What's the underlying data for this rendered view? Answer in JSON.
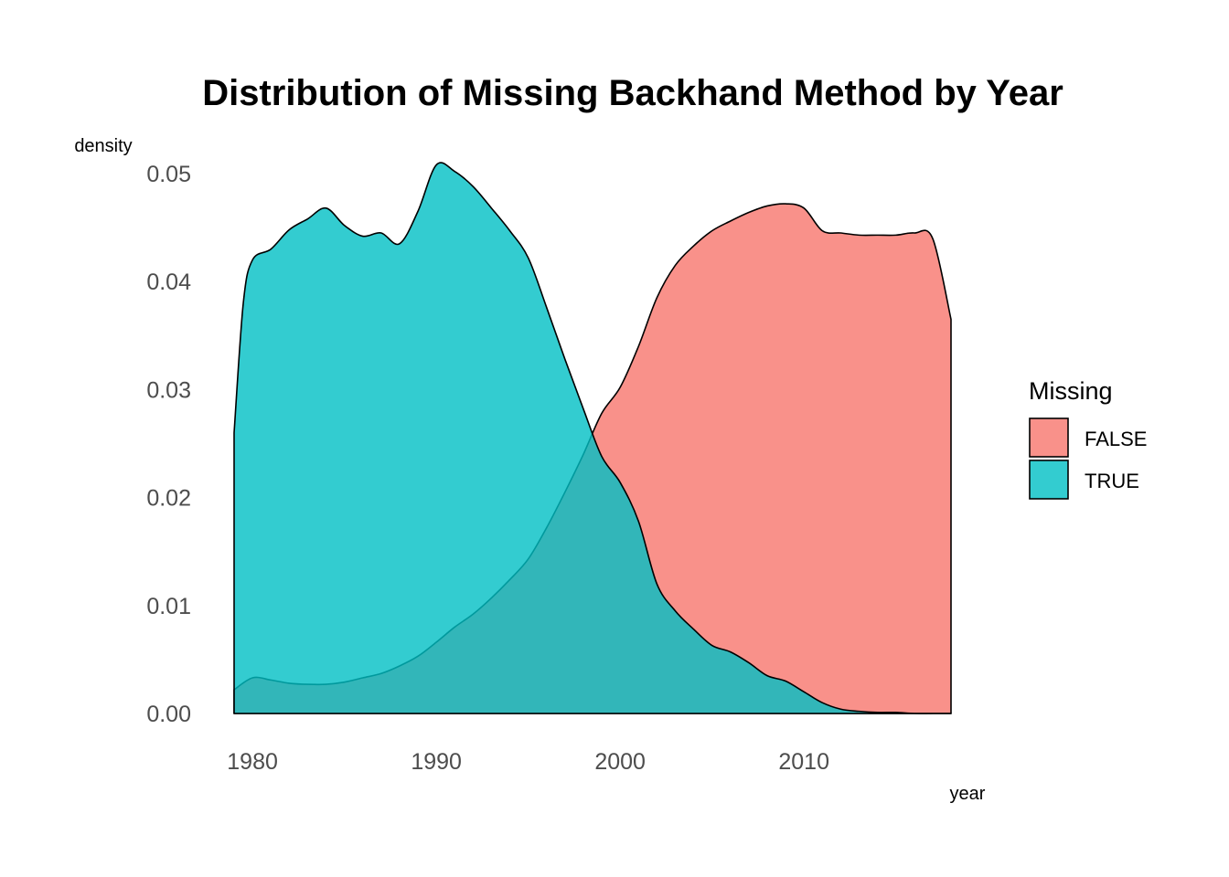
{
  "chart_data": {
    "type": "area",
    "title": "Distribution of Missing Backhand Method by Year",
    "xlabel": "year",
    "ylabel": "density",
    "xlim": [
      1979,
      2018
    ],
    "ylim": [
      0,
      0.05
    ],
    "x_ticks": [
      1980,
      1990,
      2000,
      2010
    ],
    "x_tick_labels": [
      "1980",
      "1990",
      "2000",
      "2010"
    ],
    "y_ticks": [
      0,
      0.01,
      0.02,
      0.03,
      0.04,
      0.05
    ],
    "y_tick_labels": [
      "0.00",
      "0.01",
      "0.02",
      "0.03",
      "0.04",
      "0.05"
    ],
    "grid": false,
    "legend": {
      "title": "Missing",
      "position": "right"
    },
    "series": [
      {
        "name": "FALSE",
        "color": "#F8766D",
        "x": [
          1979,
          1980,
          1981,
          1982,
          1983,
          1984,
          1985,
          1986,
          1987,
          1988,
          1989,
          1990,
          1991,
          1992,
          1993,
          1994,
          1995,
          1996,
          1997,
          1998,
          1999,
          2000,
          2001,
          2002,
          2003,
          2004,
          2005,
          2006,
          2007,
          2008,
          2009,
          2010,
          2011,
          2012,
          2013,
          2014,
          2015,
          2016,
          2017,
          2018
        ],
        "values": [
          0.0022,
          0.0033,
          0.0031,
          0.0028,
          0.0027,
          0.0027,
          0.0029,
          0.0033,
          0.0037,
          0.0044,
          0.0053,
          0.0066,
          0.008,
          0.0092,
          0.0107,
          0.0124,
          0.0143,
          0.0172,
          0.0205,
          0.024,
          0.0278,
          0.0302,
          0.034,
          0.0385,
          0.0415,
          0.0433,
          0.0447,
          0.0456,
          0.0464,
          0.047,
          0.0472,
          0.0468,
          0.0447,
          0.0445,
          0.0443,
          0.0443,
          0.0443,
          0.0445,
          0.044,
          0.0365
        ]
      },
      {
        "name": "TRUE",
        "color": "#00BFC4",
        "x": [
          1979,
          1979.5,
          1980,
          1981,
          1982,
          1983,
          1984,
          1985,
          1986,
          1987,
          1988,
          1989,
          1990,
          1991,
          1992,
          1993,
          1994,
          1995,
          1996,
          1997,
          1998,
          1999,
          2000,
          2001,
          2002,
          2003,
          2004,
          2005,
          2006,
          2007,
          2008,
          2009,
          2010,
          2011,
          2012,
          2013,
          2014,
          2015,
          2016,
          2017,
          2018
        ],
        "values": [
          0.026,
          0.038,
          0.042,
          0.043,
          0.0448,
          0.0458,
          0.0468,
          0.0452,
          0.0442,
          0.0445,
          0.0435,
          0.0465,
          0.0508,
          0.0502,
          0.0488,
          0.0468,
          0.0447,
          0.0422,
          0.0376,
          0.0328,
          0.0282,
          0.0238,
          0.0214,
          0.0178,
          0.012,
          0.0095,
          0.0078,
          0.0063,
          0.0057,
          0.0047,
          0.0035,
          0.003,
          0.002,
          0.001,
          0.0004,
          0.0002,
          0.0001,
          0.0001,
          0.0,
          0.0,
          0.0
        ]
      }
    ]
  }
}
